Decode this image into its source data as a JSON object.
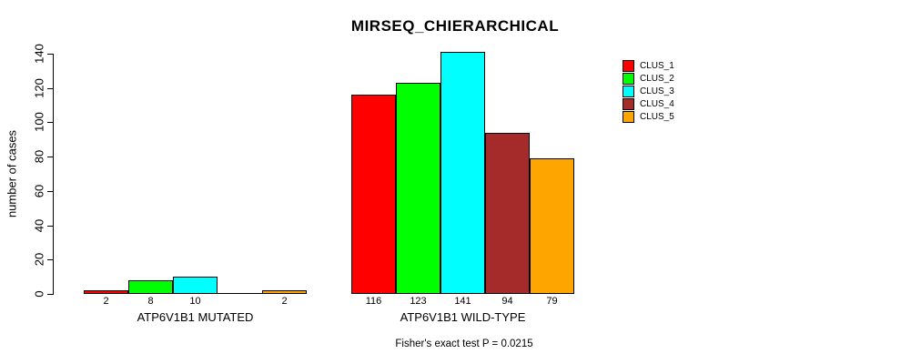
{
  "title": "MIRSEQ_CHIERARCHICAL",
  "footer": "Fisher's exact test P = 0.0215",
  "chart_data": {
    "type": "bar",
    "title": "MIRSEQ_CHIERARCHICAL",
    "xlabel": "",
    "ylabel": "number of cases",
    "ylim": [
      0,
      140
    ],
    "yticks": [
      0,
      20,
      40,
      60,
      80,
      100,
      120,
      140
    ],
    "grid": false,
    "legend_position": "right",
    "series": [
      {
        "name": "CLUS_1",
        "color": "#ff0000"
      },
      {
        "name": "CLUS_2",
        "color": "#00ff00"
      },
      {
        "name": "CLUS_3",
        "color": "#00ffff"
      },
      {
        "name": "CLUS_4",
        "color": "#a52a2a"
      },
      {
        "name": "CLUS_5",
        "color": "#ffa500"
      }
    ],
    "groups": [
      {
        "label": "ATP6V1B1 MUTATED",
        "values": [
          2,
          8,
          10,
          0,
          2
        ],
        "value_labels": [
          "2",
          "8",
          "10",
          "",
          "2"
        ]
      },
      {
        "label": "ATP6V1B1 WILD-TYPE",
        "values": [
          116,
          123,
          141,
          94,
          79
        ],
        "value_labels": [
          "116",
          "123",
          "141",
          "94",
          "79"
        ]
      }
    ],
    "annotation": "Fisher's exact test P = 0.0215"
  }
}
